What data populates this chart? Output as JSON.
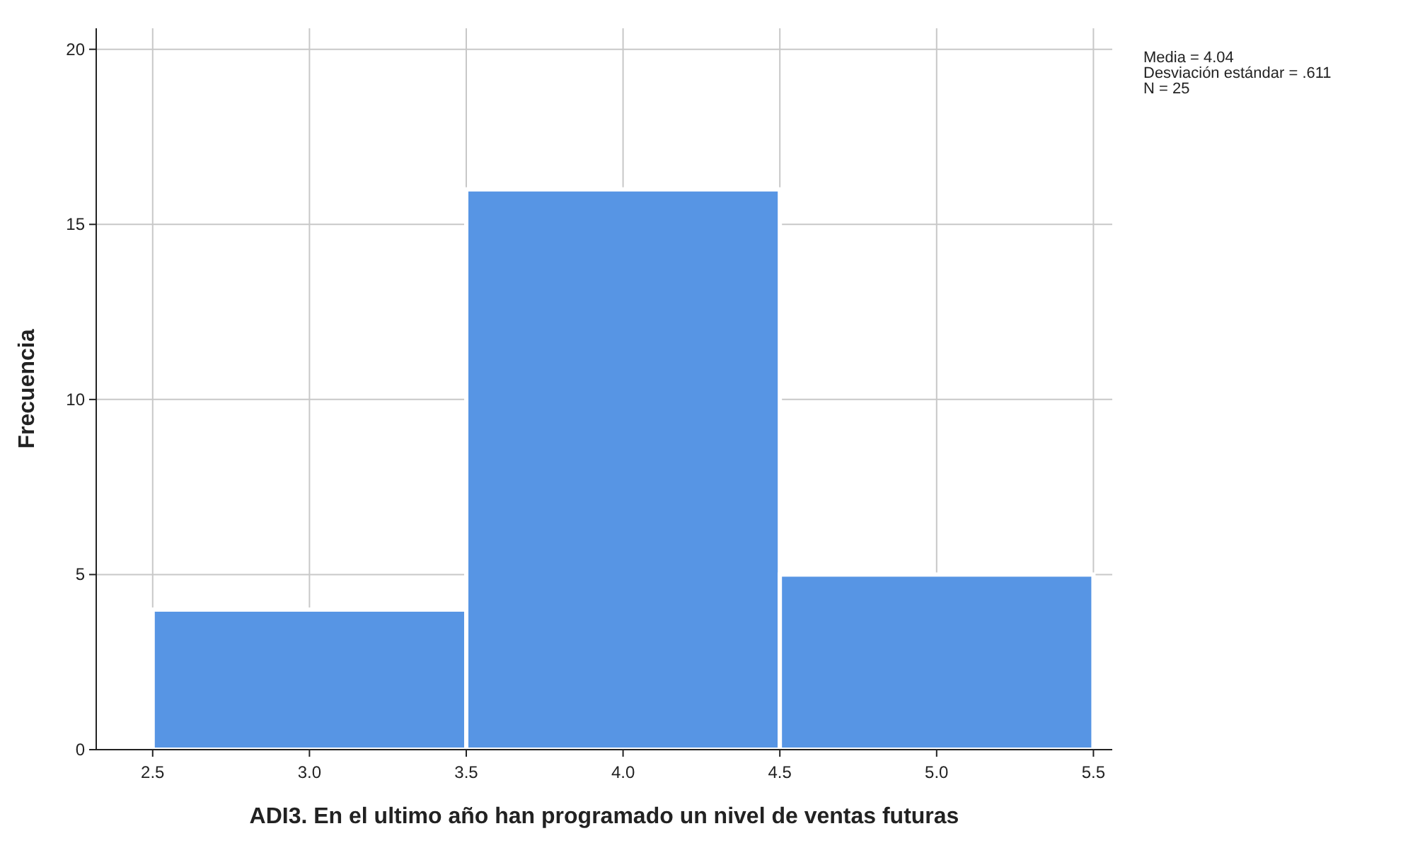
{
  "chart_data": {
    "type": "histogram",
    "xlabel": "ADI3. En el ultimo año han programado un nivel de ventas futuras",
    "ylabel": "Frecuencia",
    "bins": [
      2.5,
      3.5,
      4.5,
      5.5
    ],
    "values": [
      4,
      16,
      5
    ],
    "color": "#5795e4",
    "xlim": [
      2.32,
      5.56
    ],
    "xticks": [
      {
        "value": 2.5,
        "label": "2.5"
      },
      {
        "value": 3,
        "label": "3.0"
      },
      {
        "value": 3.5,
        "label": "3.5"
      },
      {
        "value": 4,
        "label": "4.0"
      },
      {
        "value": 4.5,
        "label": "4.5"
      },
      {
        "value": 5,
        "label": "5.0"
      },
      {
        "value": 5.5,
        "label": "5.5"
      }
    ],
    "ylim": [
      0,
      20.6
    ],
    "yticks": [
      0,
      5,
      10,
      15,
      20
    ],
    "grid": true,
    "annotations": [
      "Media = 4.04",
      "Desviación estándar = .611",
      "N = 25"
    ]
  }
}
